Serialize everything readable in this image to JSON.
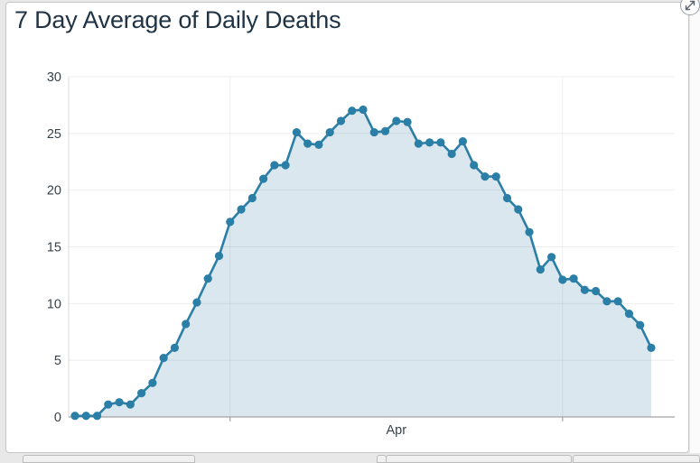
{
  "page": {
    "background": "#e8e8e8"
  },
  "card": {
    "title": "7 Day Average of Daily Deaths",
    "title_color": "#1f3344"
  },
  "expand_button": {
    "icon": "expand-diagonal-arrows"
  },
  "chart_data": {
    "type": "area",
    "title": "7 Day Average of Daily Deaths",
    "values": [
      0.1,
      0.1,
      0.1,
      1.1,
      1.3,
      1.1,
      2.1,
      3,
      5.2,
      6.1,
      8.2,
      10.1,
      12.2,
      14.2,
      17.2,
      18.3,
      19.3,
      21,
      22.2,
      22.2,
      25.1,
      24.1,
      24,
      25.1,
      26.1,
      27,
      27.1,
      25.1,
      25.2,
      26.1,
      26,
      24.1,
      24.2,
      24.2,
      23.2,
      24.3,
      22.2,
      21.2,
      21.2,
      19.3,
      18.3,
      16.3,
      13,
      14.1,
      12.1,
      12.2,
      11.2,
      11.1,
      10.2,
      10.2,
      9.1,
      8.1,
      6.1
    ],
    "ylim": [
      0,
      30
    ],
    "yticks": [
      0,
      5,
      10,
      15,
      20,
      25,
      30
    ],
    "x_tick_labels": [
      "Apr"
    ],
    "month_boundary_indices": [
      14,
      44
    ],
    "grid": "horizontal gridlines + month boundary vertical gridlines",
    "legend": "none",
    "xlabel": "",
    "ylabel": "",
    "line_color": "#2b7fa7",
    "fill_color": "#dbe7ee",
    "marker": "circle",
    "axis_label_color": "#37424a",
    "baseline_color": "#a3a3a3"
  }
}
